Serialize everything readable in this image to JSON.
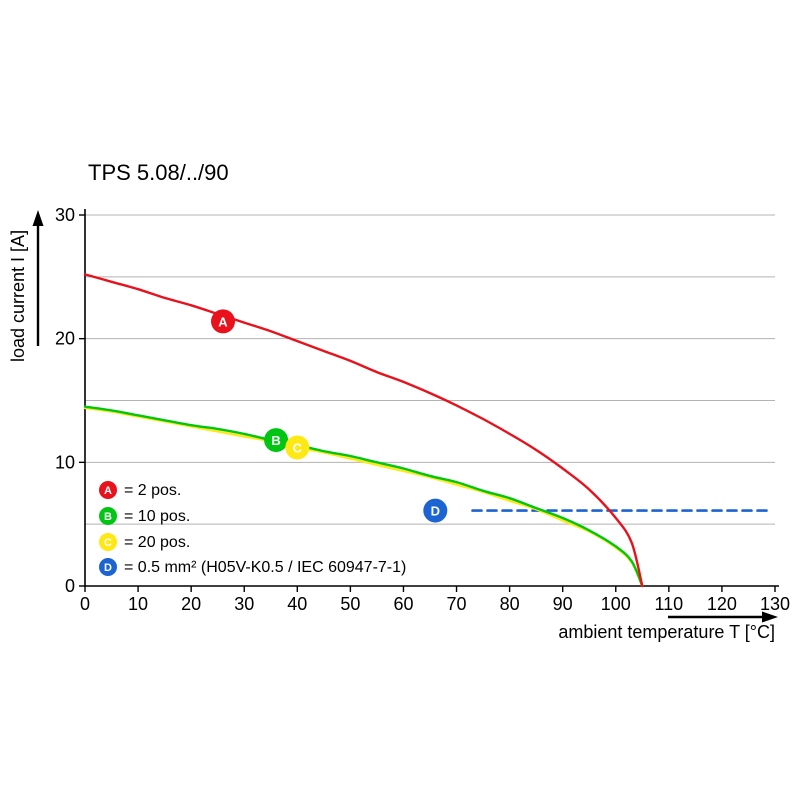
{
  "title": "TPS 5.08/../90",
  "chart_data": {
    "type": "line",
    "title": "TPS 5.08/../90",
    "xlabel": "ambient temperature T [°C]",
    "ylabel": "load current I [A]",
    "xlim": [
      0,
      130
    ],
    "ylim": [
      0,
      30
    ],
    "x_ticks": [
      0,
      10,
      20,
      30,
      40,
      50,
      60,
      70,
      80,
      90,
      100,
      110,
      120,
      130
    ],
    "y_ticks": [
      0,
      10,
      20,
      30
    ],
    "gridlines_y": [
      5,
      10,
      15,
      20,
      25,
      30
    ],
    "grid_color": "#b3b3b3",
    "axis_color": "#000000",
    "legend_position": "bottom-left-inside",
    "series": [
      {
        "name": "A",
        "label": "= 2 pos.",
        "color": "#e8111c",
        "style": "solid",
        "marker": {
          "x": 26,
          "y": 21.4
        },
        "points": [
          [
            0,
            25.2
          ],
          [
            5,
            24.6
          ],
          [
            10,
            24.0
          ],
          [
            15,
            23.3
          ],
          [
            20,
            22.7
          ],
          [
            25,
            22.0
          ],
          [
            30,
            21.3
          ],
          [
            35,
            20.6
          ],
          [
            40,
            19.8
          ],
          [
            45,
            19.0
          ],
          [
            50,
            18.2
          ],
          [
            55,
            17.3
          ],
          [
            60,
            16.5
          ],
          [
            65,
            15.6
          ],
          [
            70,
            14.6
          ],
          [
            75,
            13.5
          ],
          [
            80,
            12.3
          ],
          [
            85,
            11.0
          ],
          [
            90,
            9.5
          ],
          [
            95,
            7.8
          ],
          [
            100,
            5.5
          ],
          [
            103,
            3.5
          ],
          [
            105,
            0
          ]
        ]
      },
      {
        "name": "B",
        "label": "= 10 pos.",
        "color": "#00c613",
        "style": "solid",
        "marker": {
          "x": 36,
          "y": 11.8
        },
        "points": [
          [
            0,
            14.5
          ],
          [
            5,
            14.2
          ],
          [
            10,
            13.8
          ],
          [
            15,
            13.4
          ],
          [
            20,
            13.0
          ],
          [
            25,
            12.7
          ],
          [
            30,
            12.3
          ],
          [
            35,
            11.8
          ],
          [
            40,
            11.4
          ],
          [
            45,
            10.9
          ],
          [
            50,
            10.5
          ],
          [
            55,
            10.0
          ],
          [
            60,
            9.5
          ],
          [
            65,
            8.9
          ],
          [
            70,
            8.4
          ],
          [
            75,
            7.7
          ],
          [
            80,
            7.1
          ],
          [
            85,
            6.3
          ],
          [
            90,
            5.5
          ],
          [
            95,
            4.5
          ],
          [
            100,
            3.2
          ],
          [
            103,
            2.0
          ],
          [
            105,
            0
          ]
        ]
      },
      {
        "name": "C",
        "label": "= 20 pos.",
        "color": "#ffe813",
        "style": "solid",
        "marker": {
          "x": 40,
          "y": 11.2
        },
        "points": [
          [
            0,
            14.4
          ],
          [
            5,
            14.1
          ],
          [
            10,
            13.7
          ],
          [
            15,
            13.3
          ],
          [
            20,
            12.9
          ],
          [
            25,
            12.5
          ],
          [
            30,
            12.1
          ],
          [
            35,
            11.7
          ],
          [
            40,
            11.2
          ],
          [
            45,
            10.8
          ],
          [
            50,
            10.3
          ],
          [
            55,
            9.8
          ],
          [
            60,
            9.3
          ],
          [
            65,
            8.8
          ],
          [
            70,
            8.2
          ],
          [
            75,
            7.6
          ],
          [
            80,
            6.9
          ],
          [
            85,
            6.2
          ],
          [
            90,
            5.3
          ],
          [
            95,
            4.4
          ],
          [
            100,
            3.1
          ],
          [
            103,
            1.9
          ],
          [
            105,
            0
          ]
        ]
      },
      {
        "name": "D",
        "label": "= 0.5 mm² (H05V-K0.5 / IEC 60947-7-1)",
        "color": "#1c64d2",
        "style": "dashed",
        "marker": {
          "x": 66,
          "y": 6.1
        },
        "points": [
          [
            73,
            6.1
          ],
          [
            129,
            6.1
          ]
        ]
      }
    ]
  }
}
